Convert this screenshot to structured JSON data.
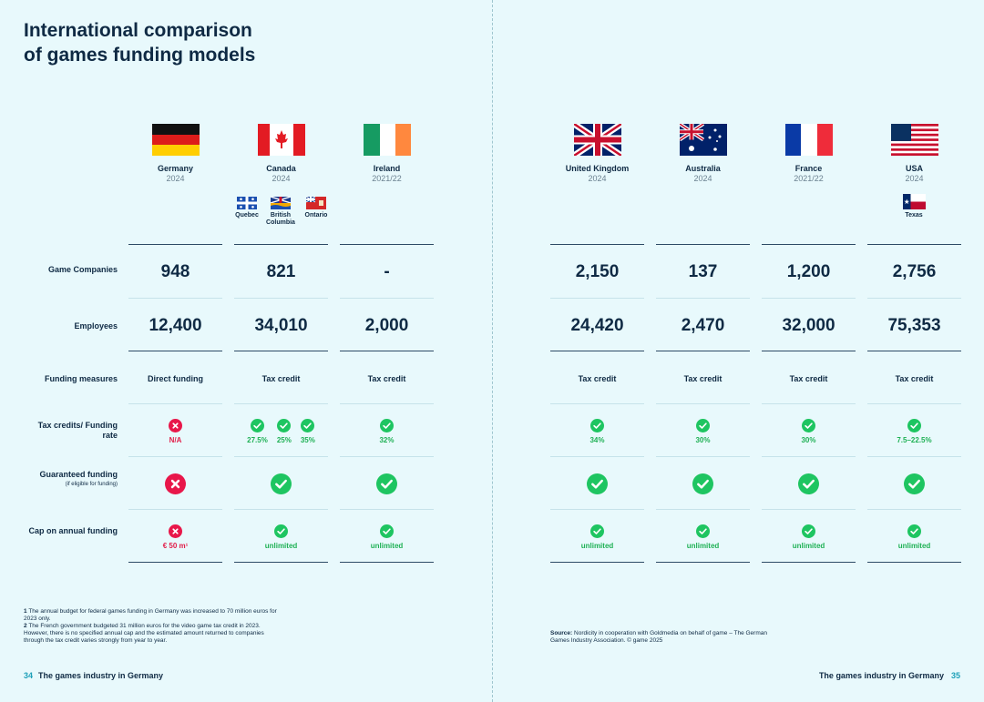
{
  "title_line1": "International comparison",
  "title_line2": "of games funding models",
  "row_labels": {
    "companies": "Game Companies",
    "employees": "Employees",
    "measures": "Funding measures",
    "rate": "Tax credits/ Funding rate",
    "guaranteed": "Guaranteed funding",
    "guaranteed_note": "(if eligible for funding)",
    "cap": "Cap on annual funding"
  },
  "countries": [
    {
      "name": "Germany",
      "year": "2024",
      "companies": "948",
      "employees": "12,400",
      "measure": "Direct funding",
      "rate_text": "N/A",
      "cap_text": "€ 50 m¹"
    },
    {
      "name": "Canada",
      "year": "2024",
      "companies": "821",
      "employees": "34,010",
      "measure": "Tax credit",
      "rates": [
        "27.5%",
        "25%",
        "35%"
      ],
      "cap_text": "unlimited"
    },
    {
      "name": "Ireland",
      "year": "2021/22",
      "companies": "-",
      "employees": "2,000",
      "measure": "Tax credit",
      "rate_text": "32%",
      "cap_text": "unlimited"
    },
    {
      "name": "United Kingdom",
      "year": "2024",
      "companies": "2,150",
      "employees": "24,420",
      "measure": "Tax credit",
      "rate_text": "34%",
      "cap_text": "unlimited"
    },
    {
      "name": "Australia",
      "year": "2024",
      "companies": "137",
      "employees": "2,470",
      "measure": "Tax credit",
      "rate_text": "30%",
      "cap_text": "unlimited"
    },
    {
      "name": "France",
      "year": "2021/22",
      "companies": "1,200",
      "employees": "32,000",
      "measure": "Tax credit",
      "rate_text": "30%",
      "cap_text": "unlimited"
    },
    {
      "name": "USA",
      "year": "2024",
      "companies": "2,756",
      "employees": "75,353",
      "measure": "Tax credit",
      "rate_text": "7.5–22.5%",
      "cap_text": "unlimited"
    }
  ],
  "canada_regions": [
    "Quebec",
    "British Columbia",
    "Ontario"
  ],
  "usa_region": "Texas",
  "footnotes": {
    "n1_num": "1",
    "n1": "The annual budget for federal games funding in Germany was increased to 70 million euros for 2023 only.",
    "n2_num": "2",
    "n2": "The French government budgeted 31 million euros for the video game tax credit in 2023. However, there is no specified annual cap and the estimated amount returned to companies through the tax credit varies strongly from year to year."
  },
  "source_label": "Source:",
  "source_text": "Nordicity in cooperation with Goldmedia on behalf of game – The German Games Industry Association. © game 2025",
  "footer_left_num": "34",
  "footer_left": "The games industry in Germany",
  "footer_right": "The games industry in Germany",
  "footer_right_num": "35",
  "colors": {
    "background": "#e8f9fc",
    "text": "#0f2a44",
    "positive": "#1ec561",
    "negative": "#e8174a"
  }
}
